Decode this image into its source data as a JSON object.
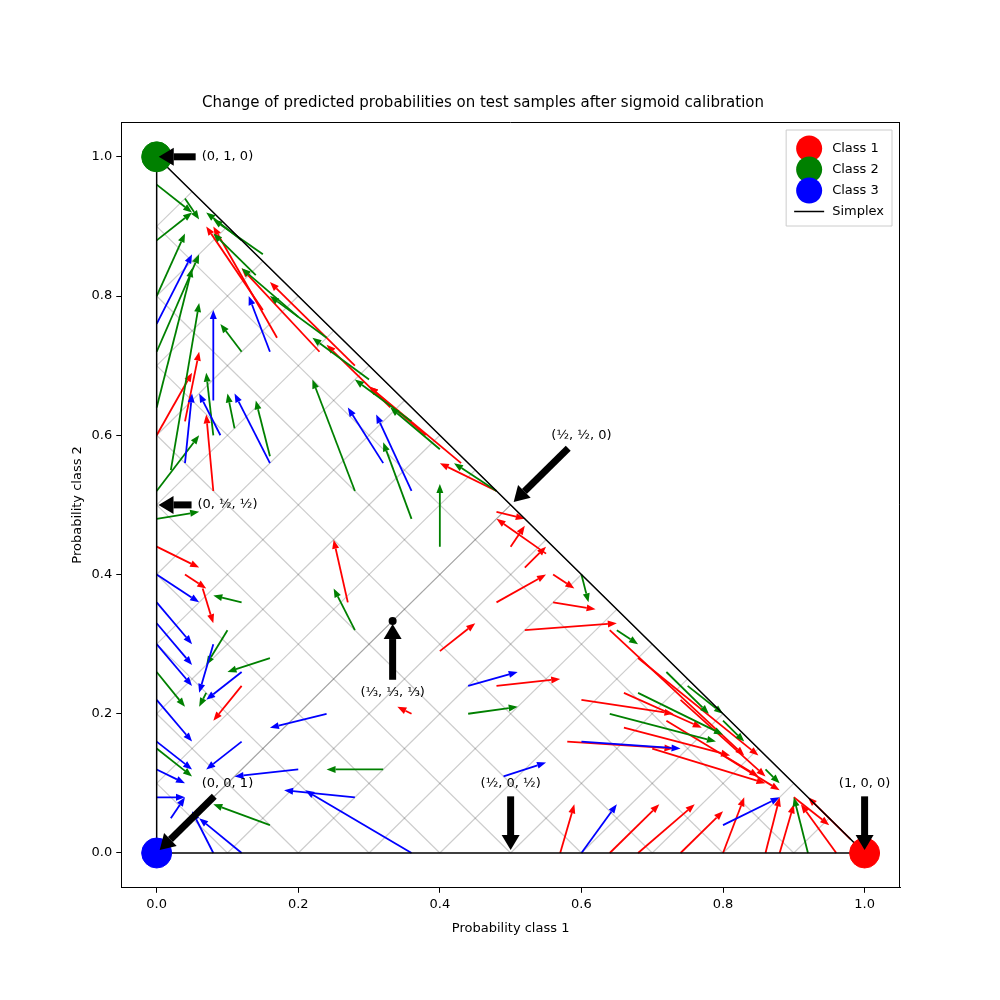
{
  "chart_data": {
    "type": "quiver",
    "title": "Change of predicted probabilities on test samples after sigmoid calibration",
    "x_label": "Probability class 1",
    "y_label": "Probability class 2",
    "xlim": [
      -0.05,
      1.05
    ],
    "ylim": [
      -0.05,
      1.05
    ],
    "xticks": [
      {
        "value": 0,
        "label": "0.0"
      },
      0.2,
      0.4,
      0.6,
      0.8,
      {
        "value": 1,
        "label": "1.0"
      }
    ],
    "yticks": [
      {
        "value": 0,
        "label": "0.0"
      },
      0.2,
      0.4,
      0.6,
      0.8,
      {
        "value": 1,
        "label": "1.0"
      }
    ],
    "legend": "upper right",
    "simplex_grid": [
      0,
      0.1,
      0.2,
      0.3,
      0.4,
      0.5,
      0.6,
      0.7,
      0.8,
      0.9,
      1
    ],
    "series": [
      {
        "name": "Class 1",
        "color": "#ff0000",
        "point": [
          1,
          0
        ],
        "marker": "circle",
        "arrows": [
          [
            0.57,
            0,
            0.59,
            0.07
          ],
          [
            0.64,
            0,
            0.71,
            0.07
          ],
          [
            0.68,
            0,
            0.76,
            0.07
          ],
          [
            0.74,
            0,
            0.8,
            0.06
          ],
          [
            0.8,
            0,
            0.83,
            0.08
          ],
          [
            0.86,
            0,
            0.88,
            0.08
          ],
          [
            0.88,
            0,
            0.9,
            0.07
          ],
          [
            0.96,
            0,
            0.91,
            0.07
          ],
          [
            0.98,
            0.02,
            0.92,
            0.08
          ],
          [
            0.6,
            0.22,
            0.73,
            0.2
          ],
          [
            0.66,
            0.23,
            0.77,
            0.18
          ],
          [
            0.58,
            0.16,
            0.73,
            0.15
          ],
          [
            0.66,
            0.18,
            0.81,
            0.14
          ],
          [
            0.7,
            0.15,
            0.86,
            0.1
          ],
          [
            0.72,
            0.19,
            0.85,
            0.11
          ],
          [
            0.64,
            0.32,
            0.83,
            0.14
          ],
          [
            0.68,
            0.28,
            0.85,
            0.14
          ],
          [
            0.74,
            0.22,
            0.86,
            0.11
          ],
          [
            0.8,
            0.14,
            0.88,
            0.09
          ],
          [
            0.9,
            0.08,
            0.95,
            0.04
          ],
          [
            0.4,
            0.29,
            0.45,
            0.33
          ],
          [
            0.48,
            0.24,
            0.57,
            0.25
          ],
          [
            0.52,
            0.32,
            0.65,
            0.33
          ],
          [
            0.48,
            0.36,
            0.55,
            0.4
          ],
          [
            0.56,
            0.36,
            0.62,
            0.35
          ],
          [
            0.56,
            0.4,
            0.59,
            0.38
          ],
          [
            0.52,
            0.41,
            0.55,
            0.44
          ],
          [
            0.5,
            0.44,
            0.52,
            0.47
          ],
          [
            0.48,
            0.49,
            0.52,
            0.48
          ],
          [
            0.36,
            0.2,
            0.34,
            0.21
          ],
          [
            0.27,
            0.36,
            0.25,
            0.45
          ],
          [
            0.48,
            0.52,
            0.4,
            0.56
          ],
          [
            0.43,
            0.56,
            0.3,
            0.67
          ],
          [
            0.38,
            0.6,
            0.3,
            0.67
          ],
          [
            0.33,
            0.64,
            0.24,
            0.73
          ],
          [
            0.28,
            0.7,
            0.16,
            0.82
          ],
          [
            0.23,
            0.72,
            0.12,
            0.84
          ],
          [
            0.17,
            0.74,
            0.08,
            0.9
          ],
          [
            0.15,
            0.78,
            0.07,
            0.9
          ],
          [
            0.55,
            0.43,
            0.48,
            0.48
          ],
          [
            0,
            0.6,
            0.05,
            0.69
          ],
          [
            0.04,
            0.62,
            0.06,
            0.72
          ],
          [
            0.08,
            0.52,
            0.07,
            0.63
          ],
          [
            0,
            0.44,
            0.06,
            0.41
          ],
          [
            0.065,
            0.38,
            0.08,
            0.33
          ],
          [
            0.12,
            0.24,
            0.08,
            0.19
          ],
          [
            0.04,
            0.4,
            0.07,
            0.38
          ]
        ]
      },
      {
        "name": "Class 2",
        "color": "#008000",
        "point": [
          0,
          1
        ],
        "marker": "circle",
        "arrows": [
          [
            0,
            0.96,
            0.05,
            0.92
          ],
          [
            0.04,
            0.94,
            0.06,
            0.91
          ],
          [
            0.12,
            0.88,
            0.07,
            0.92
          ],
          [
            0.15,
            0.86,
            0.08,
            0.91
          ],
          [
            0,
            0.88,
            0.05,
            0.92
          ],
          [
            0,
            0.8,
            0.04,
            0.89
          ],
          [
            0,
            0.72,
            0.06,
            0.86
          ],
          [
            0,
            0.64,
            0.05,
            0.84
          ],
          [
            0.02,
            0.55,
            0.06,
            0.79
          ],
          [
            0,
            0.48,
            0.06,
            0.49
          ],
          [
            0,
            0.52,
            0.06,
            0.6
          ],
          [
            0.08,
            0.6,
            0.07,
            0.69
          ],
          [
            0.12,
            0.72,
            0.09,
            0.76
          ],
          [
            0.11,
            0.61,
            0.1,
            0.66
          ],
          [
            0.16,
            0.57,
            0.14,
            0.65
          ],
          [
            0.36,
            0.48,
            0.32,
            0.59
          ],
          [
            0.4,
            0.44,
            0.4,
            0.53
          ],
          [
            0.28,
            0.52,
            0.22,
            0.68
          ],
          [
            0.6,
            0.4,
            0.61,
            0.36
          ],
          [
            0.65,
            0.32,
            0.68,
            0.3
          ],
          [
            0.72,
            0.26,
            0.78,
            0.2
          ],
          [
            0.75,
            0.24,
            0.8,
            0.2
          ],
          [
            0.8,
            0.19,
            0.83,
            0.16
          ],
          [
            0.86,
            0.12,
            0.88,
            0.1
          ],
          [
            0.92,
            0,
            0.9,
            0.08
          ],
          [
            0.64,
            0.2,
            0.79,
            0.16
          ],
          [
            0.68,
            0.23,
            0.8,
            0.17
          ],
          [
            0.48,
            0.52,
            0.42,
            0.56
          ],
          [
            0.4,
            0.58,
            0.33,
            0.64
          ],
          [
            0.36,
            0.62,
            0.28,
            0.68
          ],
          [
            0.3,
            0.68,
            0.22,
            0.74
          ],
          [
            0.24,
            0.74,
            0.16,
            0.8
          ],
          [
            0.2,
            0.77,
            0.12,
            0.84
          ],
          [
            0.14,
            0.83,
            0.08,
            0.89
          ],
          [
            0.28,
            0.32,
            0.25,
            0.38
          ],
          [
            0.44,
            0.2,
            0.51,
            0.21
          ],
          [
            0.32,
            0.12,
            0.24,
            0.12
          ],
          [
            0.16,
            0.28,
            0.1,
            0.26
          ],
          [
            0.12,
            0.36,
            0.08,
            0.37
          ],
          [
            0.1,
            0.32,
            0.07,
            0.27
          ],
          [
            0.07,
            0.23,
            0.06,
            0.21
          ],
          [
            0.16,
            0.04,
            0.08,
            0.07
          ],
          [
            0,
            0.26,
            0.04,
            0.21
          ],
          [
            0,
            0.15,
            0.05,
            0.11
          ]
        ]
      },
      {
        "name": "Class 3",
        "color": "#0000ff",
        "point": [
          0,
          0
        ],
        "marker": "circle",
        "arrows": [
          [
            0,
            0.4,
            0.06,
            0.36
          ],
          [
            0,
            0.36,
            0.05,
            0.3
          ],
          [
            0,
            0.33,
            0.05,
            0.27
          ],
          [
            0,
            0.3,
            0.05,
            0.24
          ],
          [
            0,
            0.22,
            0.05,
            0.16
          ],
          [
            0,
            0.16,
            0.05,
            0.12
          ],
          [
            0,
            0.12,
            0.04,
            0.1
          ],
          [
            0,
            0.08,
            0.04,
            0.08
          ],
          [
            0.02,
            0.05,
            0.04,
            0.08
          ],
          [
            0.08,
            0,
            0.05,
            0.06
          ],
          [
            0.12,
            0,
            0.06,
            0.05
          ],
          [
            0.36,
            0,
            0.21,
            0.09
          ],
          [
            0.28,
            0.08,
            0.18,
            0.09
          ],
          [
            0.2,
            0.12,
            0.11,
            0.11
          ],
          [
            0.24,
            0.2,
            0.16,
            0.18
          ],
          [
            0.12,
            0.16,
            0.07,
            0.12
          ],
          [
            0.12,
            0.26,
            0.07,
            0.22
          ],
          [
            0.08,
            0.3,
            0.06,
            0.23
          ],
          [
            0.44,
            0.24,
            0.51,
            0.26
          ],
          [
            0.49,
            0.11,
            0.55,
            0.13
          ],
          [
            0.6,
            0,
            0.65,
            0.07
          ],
          [
            0.6,
            0.16,
            0.74,
            0.15
          ],
          [
            0.8,
            0.04,
            0.88,
            0.08
          ],
          [
            0.16,
            0.56,
            0.11,
            0.66
          ],
          [
            0.36,
            0.52,
            0.31,
            0.63
          ],
          [
            0.32,
            0.56,
            0.27,
            0.64
          ],
          [
            0.16,
            0.72,
            0.13,
            0.8
          ],
          [
            0.09,
            0.6,
            0.06,
            0.66
          ],
          [
            0.04,
            0.56,
            0.05,
            0.66
          ],
          [
            0,
            0.76,
            0.05,
            0.86
          ],
          [
            0.08,
            0.65,
            0.08,
            0.78
          ]
        ]
      },
      {
        "name": "Simplex",
        "type": "line",
        "color": "#000000",
        "line_style": "solid",
        "x": [
          1,
          0,
          0,
          1
        ],
        "y": [
          0,
          1,
          0,
          0
        ]
      }
    ],
    "annotations": [
      {
        "text": "(⅓, ⅓, ⅓)",
        "xy": [
          0.3333,
          0.3333
        ],
        "xytext": [
          0.3333,
          0.23
        ],
        "marker": "dot"
      },
      {
        "text": "(½, 0, ½)",
        "xy": [
          0.5,
          0
        ],
        "xytext": [
          0.5,
          0.1
        ]
      },
      {
        "text": "(0, ½, ½)",
        "xy": [
          0,
          0.5
        ],
        "xytext": [
          0.1,
          0.5
        ]
      },
      {
        "text": "(½, ½, 0)",
        "xy": [
          0.5,
          0.5
        ],
        "xytext": [
          0.6,
          0.6
        ]
      },
      {
        "text": "(0, 0, 1)",
        "xy": [
          0,
          0
        ],
        "xytext": [
          0.1,
          0.1
        ]
      },
      {
        "text": "(1, 0, 0)",
        "xy": [
          1,
          0
        ],
        "xytext": [
          1,
          0.1
        ]
      },
      {
        "text": "(0, 1, 0)",
        "xy": [
          0,
          1
        ],
        "xytext": [
          0.1,
          1
        ]
      }
    ]
  }
}
